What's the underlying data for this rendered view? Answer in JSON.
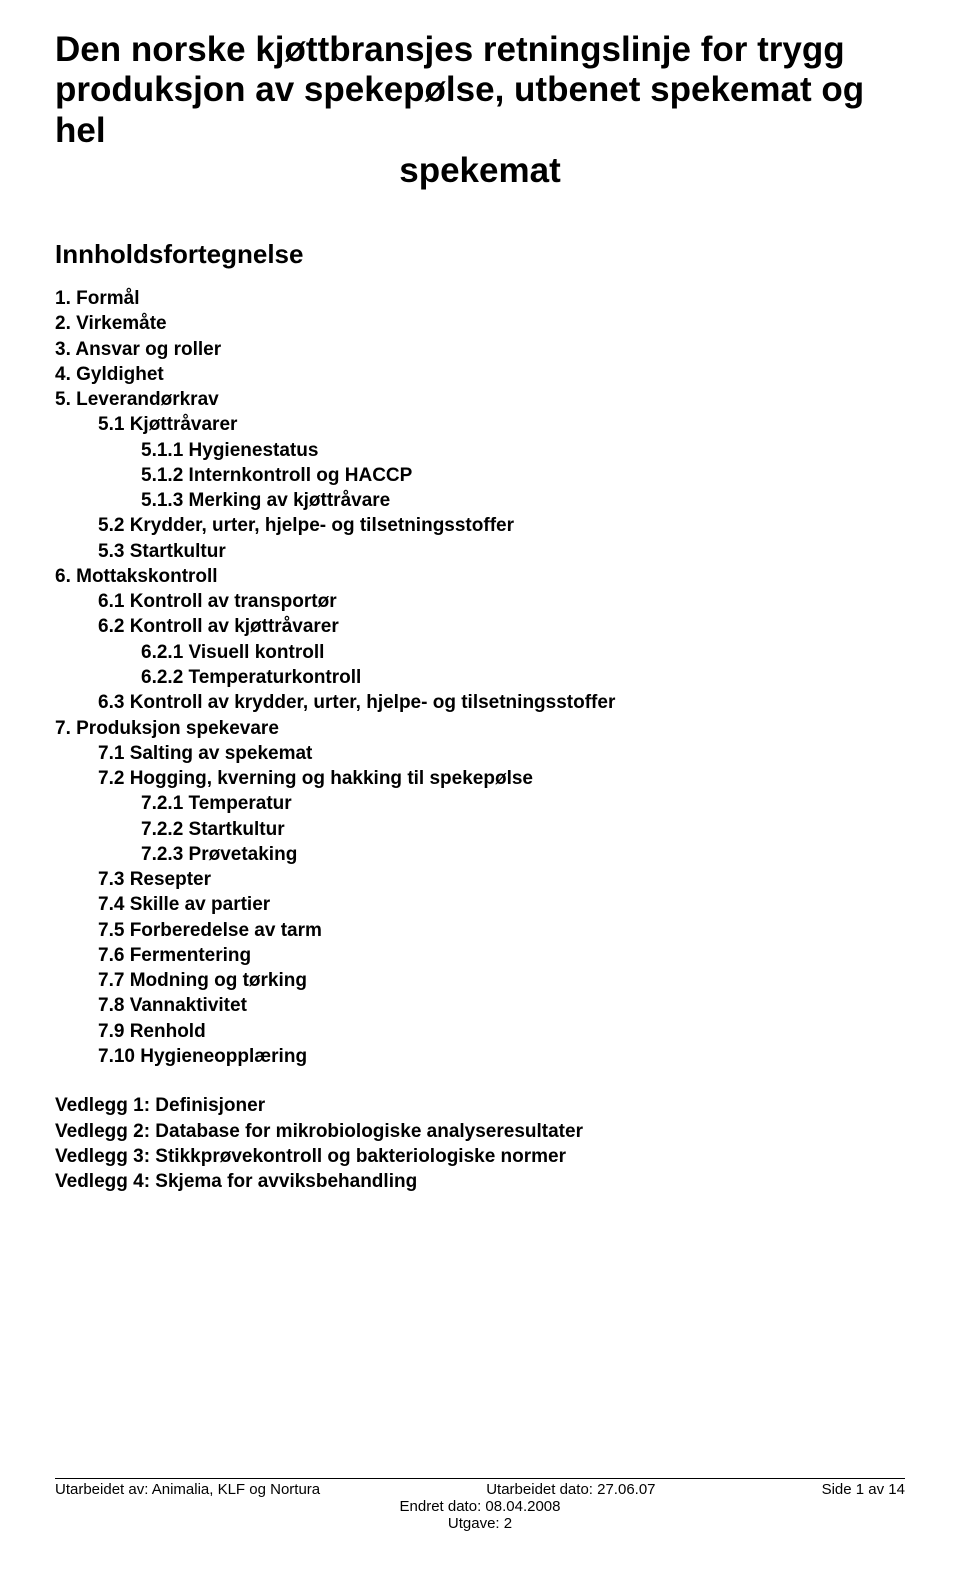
{
  "title": {
    "line1": "Den norske kjøttbransjes retningslinje for trygg",
    "line2": "produksjon av spekepølse, utbenet spekemat og hel",
    "line3": "spekemat"
  },
  "toc_heading": "Innholdsfortegnelse",
  "toc": [
    {
      "level": 1,
      "num": "1.",
      "text": "Formål"
    },
    {
      "level": 1,
      "num": "2.",
      "text": "Virkemåte"
    },
    {
      "level": 1,
      "num": "3.",
      "text": "Ansvar og roller"
    },
    {
      "level": 1,
      "num": "4.",
      "text": "Gyldighet"
    },
    {
      "level": 1,
      "num": "5.",
      "text": "Leverandørkrav"
    },
    {
      "level": 2,
      "num": "5.1",
      "text": "Kjøttråvarer"
    },
    {
      "level": 3,
      "num": "5.1.1",
      "text": "Hygienestatus"
    },
    {
      "level": 3,
      "num": "5.1.2",
      "text": "Internkontroll og HACCP"
    },
    {
      "level": 3,
      "num": "5.1.3",
      "text": "Merking av kjøttråvare"
    },
    {
      "level": 2,
      "num": "5.2",
      "text": "Krydder, urter, hjelpe- og tilsetningsstoffer"
    },
    {
      "level": 2,
      "num": "5.3",
      "text": "Startkultur"
    },
    {
      "level": 1,
      "num": "6.",
      "text": "Mottakskontroll"
    },
    {
      "level": 2,
      "num": "6.1",
      "text": "Kontroll av transportør"
    },
    {
      "level": 2,
      "num": "6.2",
      "text": "Kontroll av kjøttråvarer"
    },
    {
      "level": 3,
      "num": "6.2.1",
      "text": "Visuell kontroll"
    },
    {
      "level": 3,
      "num": "6.2.2",
      "text": "Temperaturkontroll"
    },
    {
      "level": 2,
      "num": "6.3",
      "text": "Kontroll av krydder, urter, hjelpe- og tilsetningsstoffer"
    },
    {
      "level": 1,
      "num": "7.",
      "text": "Produksjon spekevare"
    },
    {
      "level": 2,
      "num": "7.1",
      "text": "Salting av spekemat"
    },
    {
      "level": 2,
      "num": "7.2",
      "text": "Hogging, kverning og hakking til spekepølse"
    },
    {
      "level": 3,
      "num": "7.2.1",
      "text": "Temperatur"
    },
    {
      "level": 3,
      "num": "7.2.2",
      "text": "Startkultur"
    },
    {
      "level": 3,
      "num": "7.2.3",
      "text": "Prøvetaking"
    },
    {
      "level": 2,
      "num": "7.3",
      "text": "Resepter"
    },
    {
      "level": 2,
      "num": "7.4",
      "text": "Skille av partier"
    },
    {
      "level": 2,
      "num": "7.5",
      "text": "Forberedelse av tarm"
    },
    {
      "level": 2,
      "num": "7.6",
      "text": "Fermentering"
    },
    {
      "level": 2,
      "num": "7.7",
      "text": "Modning og tørking"
    },
    {
      "level": 2,
      "num": "7.8",
      "text": "Vannaktivitet"
    },
    {
      "level": 2,
      "num": "7.9",
      "text": "Renhold"
    },
    {
      "level": 2,
      "num": "7.10",
      "text": "Hygieneopplæring"
    }
  ],
  "attachments": [
    "Vedlegg 1: Definisjoner",
    "Vedlegg 2: Database for mikrobiologiske analyseresultater",
    "Vedlegg 3: Stikkprøvekontroll og bakteriologiske normer",
    "Vedlegg 4: Skjema for avviksbehandling"
  ],
  "footer": {
    "left": "Utarbeidet av: Animalia, KLF og Nortura",
    "center1": "Utarbeidet dato: 27.06.07",
    "center2": "Endret dato: 08.04.2008",
    "center3": "Utgave: 2",
    "right": "Side 1 av 14"
  },
  "colors": {
    "text": "#000000",
    "background": "#ffffff",
    "footer_line": "#000000"
  },
  "typography": {
    "title_fontsize": 35,
    "toc_heading_fontsize": 26,
    "body_fontsize": 19,
    "footer_fontsize": 15,
    "font_family": "Arial"
  }
}
